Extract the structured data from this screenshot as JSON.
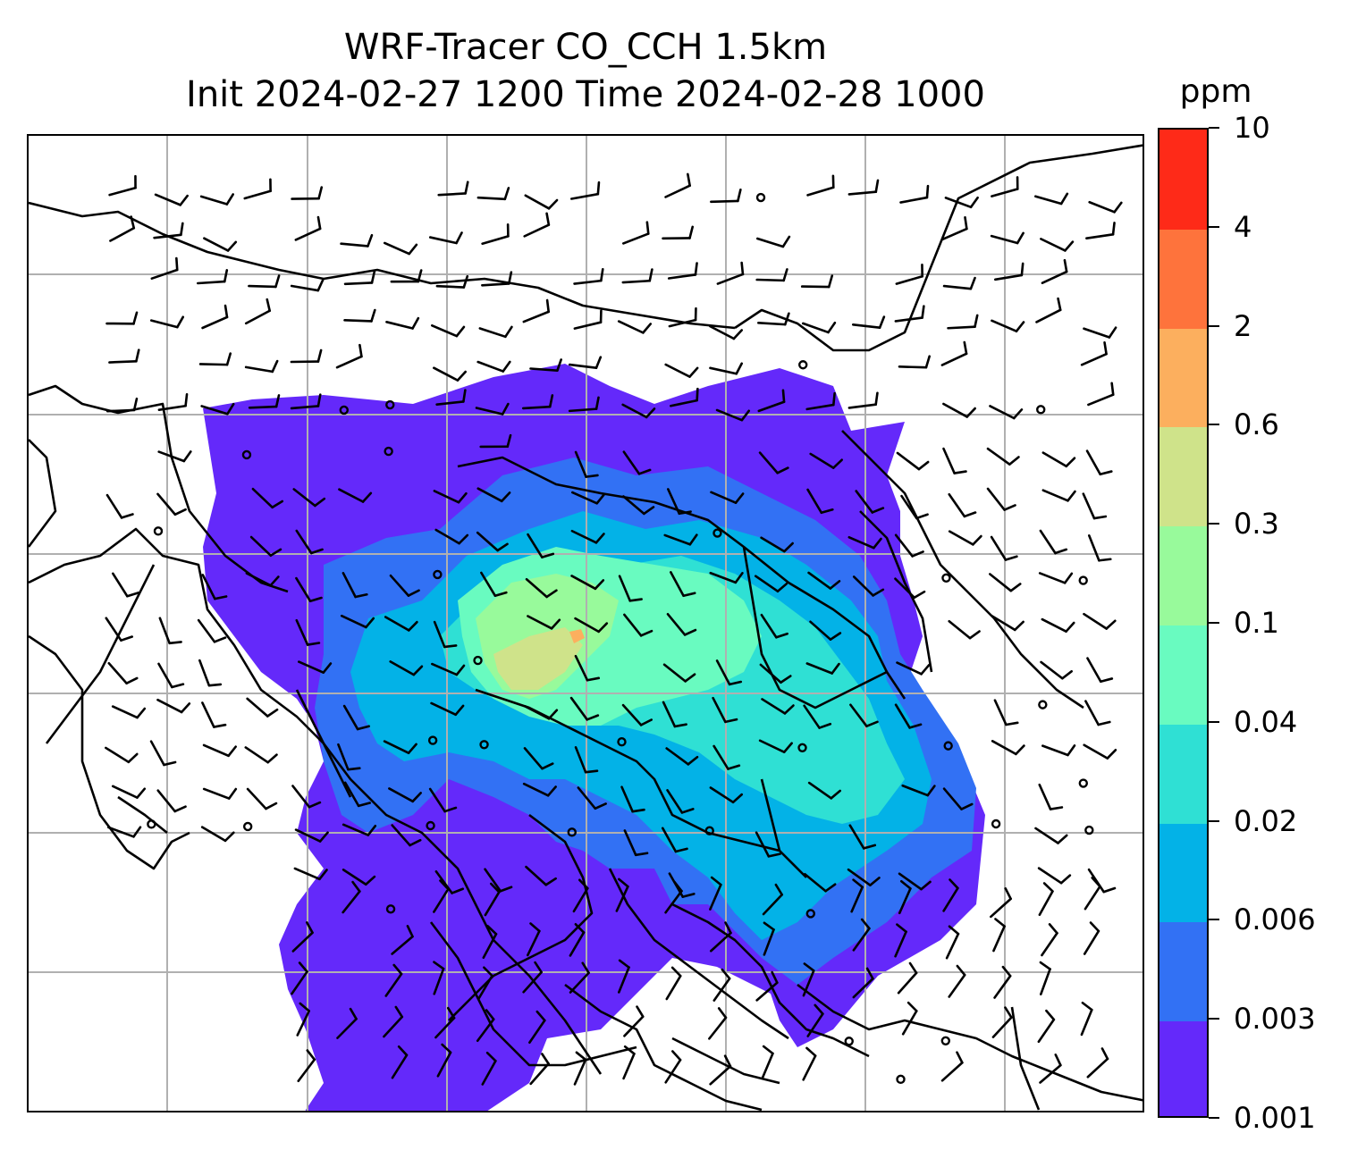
{
  "title": {
    "line1": "WRF-Tracer CO_CCH 1.5km",
    "line2": "Init 2024-02-27 1200 Time 2024-02-28 1000"
  },
  "colorbar": {
    "unit": "ppm",
    "levels": [
      "0.001",
      "0.003",
      "0.006",
      "0.02",
      "0.04",
      "0.1",
      "0.3",
      "0.6",
      "2",
      "4",
      "10"
    ],
    "colors": [
      "#6429fa",
      "#3271f4",
      "#03b2e7",
      "#2fe0d4",
      "#69fbc0",
      "#98fa9b",
      "#cfe38a",
      "#fcaf5e",
      "#fe733c",
      "#fe2a18"
    ]
  },
  "map": {
    "grid": "on",
    "map_type": "tracer concentration with wind barbs and coastlines",
    "colors": {
      "coast": "#000000",
      "grid": "#b0b0b0"
    }
  }
}
